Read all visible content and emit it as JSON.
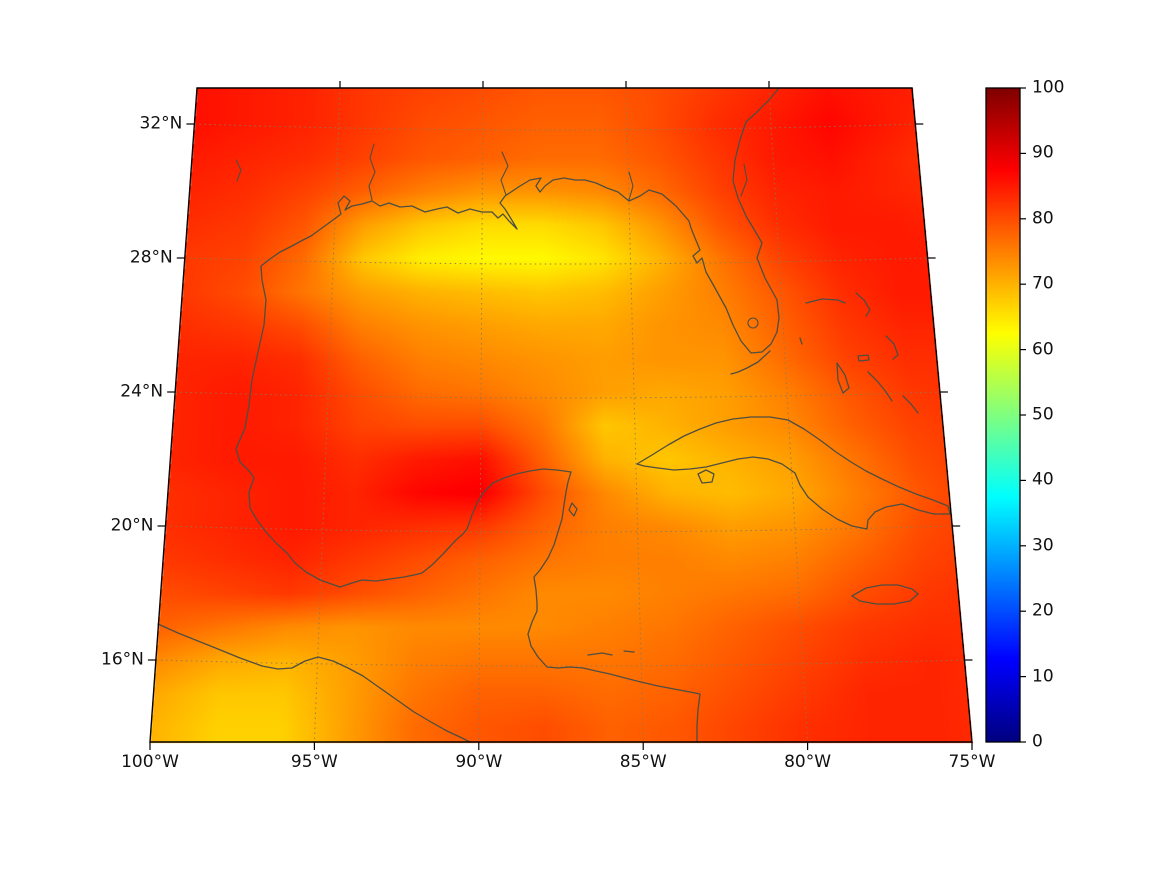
{
  "figure": {
    "background": "#ffffff",
    "kind": "geographic heatmap plot"
  },
  "map": {
    "lat_tick_labels": [
      "32°N",
      "28°N",
      "24°N",
      "20°N",
      "16°N"
    ],
    "lat_tick_values": [
      32,
      28,
      24,
      20,
      16
    ],
    "lon_tick_labels": [
      "100°W",
      "95°W",
      "90°W",
      "85°W",
      "80°W",
      "75°W"
    ],
    "lon_tick_values": [
      -100,
      -95,
      -90,
      -85,
      -80,
      -75
    ],
    "grid_lat_values": [
      32,
      28,
      24,
      20,
      16
    ],
    "grid_lon_values": [
      -95,
      -90,
      -85,
      -80
    ]
  },
  "colorbar": {
    "min": 0,
    "max": 100,
    "tick_values": [
      0,
      10,
      20,
      30,
      40,
      50,
      60,
      70,
      80,
      90,
      100
    ],
    "tick_labels": [
      "0",
      "10",
      "20",
      "30",
      "40",
      "50",
      "60",
      "70",
      "80",
      "90",
      "100"
    ],
    "colormap": "jet"
  },
  "chart_data": {
    "type": "heatmap",
    "title": "",
    "region": "Gulf of Mexico / western Caribbean",
    "projection": "lambert-conformal-like (trapezoidal frame)",
    "lon_range": [
      -100,
      -75
    ],
    "lat_range": [
      13.5,
      33.1
    ],
    "value_range": [
      0,
      100
    ],
    "colormap": "jet",
    "legend_position": "right colorbar",
    "grid_lons": [
      -100,
      -98,
      -96,
      -94,
      -92,
      -90,
      -88,
      -86,
      -84,
      -82,
      -80,
      -78,
      -76,
      -74
    ],
    "grid_lats": [
      33,
      32,
      31,
      30,
      29,
      28,
      27,
      26,
      25,
      24,
      23,
      22,
      21,
      20,
      19,
      18,
      17,
      16,
      15,
      14
    ],
    "values": [
      [
        86,
        85,
        84,
        82,
        81,
        80,
        79,
        79,
        80,
        82,
        84,
        86,
        85,
        84
      ],
      [
        86,
        85,
        84,
        82,
        80,
        79,
        78,
        78,
        80,
        83,
        85,
        87,
        85,
        83
      ],
      [
        85,
        84,
        83,
        81,
        79,
        78,
        77,
        77,
        79,
        82,
        85,
        86,
        84,
        82
      ],
      [
        84,
        83,
        81,
        78,
        75,
        73,
        73,
        74,
        77,
        81,
        84,
        85,
        84,
        83
      ],
      [
        83,
        82,
        79,
        72,
        68,
        66,
        66,
        68,
        73,
        79,
        83,
        85,
        85,
        84
      ],
      [
        82,
        81,
        77,
        68,
        64,
        63,
        63,
        65,
        70,
        76,
        81,
        84,
        85,
        85
      ],
      [
        82,
        80,
        76,
        72,
        70,
        69,
        68,
        69,
        72,
        75,
        79,
        83,
        85,
        85
      ],
      [
        83,
        82,
        80,
        75,
        73,
        72,
        71,
        71,
        73,
        74,
        78,
        82,
        84,
        84
      ],
      [
        84,
        84,
        83,
        78,
        75,
        74,
        73,
        72,
        73,
        73,
        77,
        81,
        83,
        83
      ],
      [
        84,
        85,
        84,
        80,
        77,
        76,
        74,
        72,
        71,
        72,
        75,
        79,
        82,
        83
      ],
      [
        84,
        85,
        84,
        81,
        80,
        80,
        76,
        68,
        70,
        72,
        74,
        78,
        81,
        82
      ],
      [
        84,
        85,
        85,
        83,
        85,
        86,
        78,
        70,
        68,
        70,
        72,
        76,
        80,
        82
      ],
      [
        83,
        84,
        85,
        84,
        87,
        88,
        80,
        74,
        70,
        69,
        71,
        75,
        79,
        82
      ],
      [
        83,
        84,
        85,
        84,
        83,
        82,
        78,
        75,
        74,
        72,
        73,
        76,
        80,
        82
      ],
      [
        82,
        83,
        84,
        82,
        80,
        78,
        76,
        75,
        75,
        74,
        75,
        78,
        81,
        82
      ],
      [
        80,
        81,
        82,
        80,
        78,
        76,
        74,
        74,
        75,
        76,
        77,
        80,
        82,
        83
      ],
      [
        78,
        76,
        74,
        73,
        74,
        74,
        74,
        75,
        76,
        78,
        80,
        82,
        83,
        83
      ],
      [
        74,
        71,
        70,
        72,
        75,
        76,
        76,
        76,
        77,
        79,
        81,
        83,
        84,
        83
      ],
      [
        71,
        68,
        68,
        72,
        76,
        78,
        78,
        77,
        78,
        80,
        82,
        84,
        84,
        83
      ],
      [
        70,
        67,
        67,
        72,
        77,
        79,
        80,
        78,
        79,
        81,
        83,
        84,
        84,
        83
      ]
    ]
  }
}
